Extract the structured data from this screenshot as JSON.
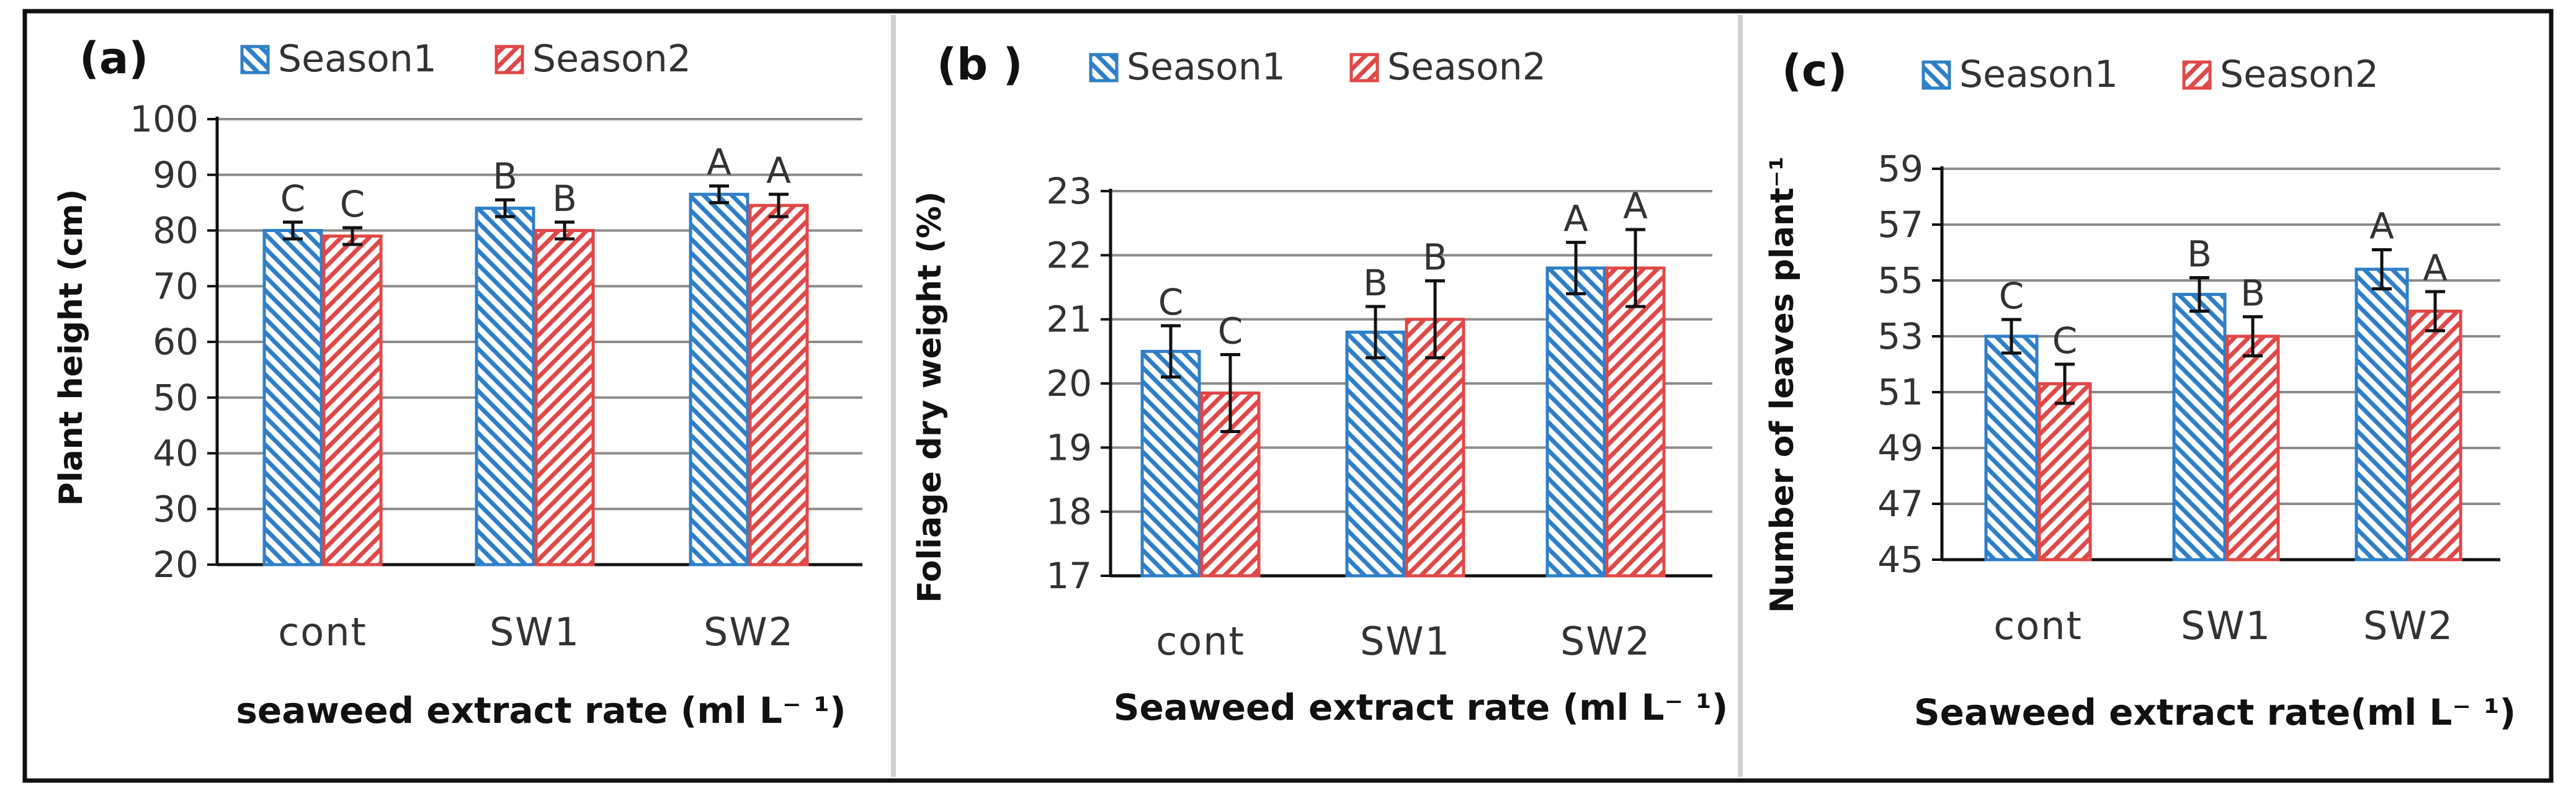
{
  "colors": {
    "season1": "#2f7fc8",
    "season2": "#e04848",
    "frame": "#111111",
    "grid": "#8c8c8c",
    "text": "#333333"
  },
  "chart_data": [
    {
      "type": "bar",
      "panel_label": "(a)",
      "title": "",
      "categories": [
        "cont",
        "SW1",
        "SW2"
      ],
      "legend": [
        "Season1",
        "Season2"
      ],
      "series": [
        {
          "name": "Season1",
          "values": [
            80,
            84,
            86.5
          ],
          "errors": [
            1.5,
            1.5,
            1.5
          ],
          "letters": [
            "C",
            "B",
            "A"
          ]
        },
        {
          "name": "Season2",
          "values": [
            79,
            80,
            84.5
          ],
          "errors": [
            1.5,
            1.5,
            2
          ],
          "letters": [
            "C",
            "B",
            "A"
          ]
        }
      ],
      "xlabel": "seaweed extract rate (ml L⁻ ¹)",
      "ylabel": "Plant height (cm)",
      "ylim": [
        20,
        100
      ],
      "yticks": [
        "20",
        "30",
        "40",
        "50",
        "60",
        "70",
        "80",
        "90",
        "100"
      ],
      "grid": true
    },
    {
      "type": "bar",
      "panel_label": "(b )",
      "title": "",
      "categories": [
        "cont",
        "SW1",
        "SW2"
      ],
      "legend": [
        "Season1",
        "Season2"
      ],
      "series": [
        {
          "name": "Season1",
          "values": [
            20.5,
            20.8,
            21.8
          ],
          "errors": [
            0.4,
            0.4,
            0.4
          ],
          "letters": [
            "C",
            "B",
            "A"
          ]
        },
        {
          "name": "Season2",
          "values": [
            19.85,
            21.0,
            21.8
          ],
          "errors": [
            0.6,
            0.6,
            0.6
          ],
          "letters": [
            "C",
            "B",
            "A"
          ]
        }
      ],
      "xlabel": "Seaweed extract rate (ml L⁻ ¹)",
      "ylabel": "Foliage dry weight (%)",
      "ylim": [
        17,
        23
      ],
      "yticks": [
        "17",
        "18",
        "19",
        "20",
        "21",
        "22",
        "23"
      ],
      "grid": true
    },
    {
      "type": "bar",
      "panel_label": "(c)",
      "title": "",
      "categories": [
        "cont",
        "SW1",
        "SW2"
      ],
      "legend": [
        "Season1",
        "Season2"
      ],
      "series": [
        {
          "name": "Season1",
          "values": [
            53.0,
            54.5,
            55.4
          ],
          "errors": [
            0.6,
            0.6,
            0.7
          ],
          "letters": [
            "C",
            "B",
            "A"
          ]
        },
        {
          "name": "Season2",
          "values": [
            51.3,
            53.0,
            53.9
          ],
          "errors": [
            0.7,
            0.7,
            0.7
          ],
          "letters": [
            "C",
            "B",
            "A"
          ]
        }
      ],
      "xlabel": "Seaweed extract rate(ml L⁻ ¹)",
      "ylabel": "Number of leaves plant⁻¹",
      "ylim": [
        45,
        59
      ],
      "yticks": [
        "45",
        "47",
        "49",
        "51",
        "53",
        "55",
        "57",
        "59"
      ],
      "grid": true
    }
  ]
}
